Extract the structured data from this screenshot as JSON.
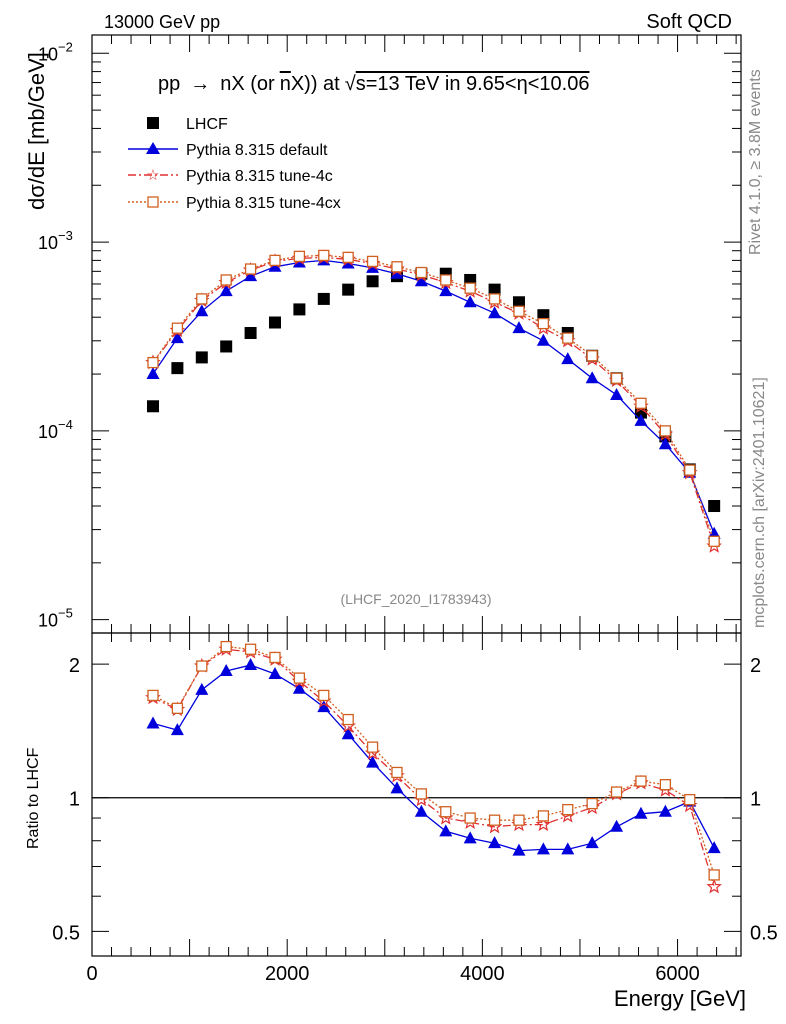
{
  "header": {
    "left": "13000 GeV pp",
    "right": "Soft QCD"
  },
  "side": {
    "rivet": "Rivet 4.1.0, ≥ 3.8M events",
    "mcplots": "mcplots.cern.ch [arXiv:2401.10621]"
  },
  "watermark": "(LHCF_2020_I1783943)",
  "colors": {
    "lhcf": "#000000",
    "default": "#0000dd",
    "tune4c": "#e03030",
    "tune4cx": "#d06020",
    "axis": "#000000"
  },
  "chart_data": [
    {
      "type": "scatter",
      "title": "pp  →  nX (or n̅X)) at √s=13 TeV in 9.65<η<10.06",
      "title_parts": {
        "a": "pp",
        "arrow": "→",
        "b": "nX (or",
        "nbar": "n",
        "c": "X)) at",
        "sqrt": "√",
        "d": "s=13 TeV in 9.65<η<10.06"
      },
      "ylabel": "dσ/dE [mb/GeV]",
      "yscale": "log",
      "ylim": [
        8.5e-06,
        0.0125
      ],
      "xlim": [
        0,
        6650
      ],
      "yticks": [
        {
          "value": 0.01,
          "label": "10",
          "exp": "−2"
        },
        {
          "value": 0.001,
          "label": "10",
          "exp": "−3"
        },
        {
          "value": 0.0001,
          "label": "10",
          "exp": "−4"
        },
        {
          "value": 1e-05,
          "label": "10",
          "exp": "−5"
        }
      ],
      "x": [
        625,
        875,
        1125,
        1375,
        1625,
        1875,
        2125,
        2375,
        2625,
        2875,
        3125,
        3375,
        3625,
        3875,
        4125,
        4375,
        4625,
        4875,
        5125,
        5375,
        5625,
        5875,
        6125,
        6375
      ],
      "legend": [
        "LHCF",
        "Pythia 8.315 default",
        "Pythia 8.315 tune-4c",
        "Pythia 8.315 tune-4cx"
      ],
      "series": [
        {
          "name": "LHCF",
          "marker": "square",
          "values": [
            0.000135,
            0.000215,
            0.000245,
            0.00028,
            0.00033,
            0.000375,
            0.00044,
            0.0005,
            0.00056,
            0.00062,
            0.00066,
            0.00068,
            0.00068,
            0.00063,
            0.00056,
            0.00048,
            0.00041,
            0.00033,
            0.00025,
            0.00019,
            0.000125,
            9.35e-05,
            6.25e-05,
            4e-05
          ]
        },
        {
          "name": "Pythia 8.315 default",
          "marker": "triangle",
          "values": [
            0.0002,
            0.00031,
            0.00043,
            0.00055,
            0.00066,
            0.00074,
            0.00078,
            0.0008,
            0.00077,
            0.00073,
            0.00068,
            0.00062,
            0.00055,
            0.00048,
            0.00042,
            0.00035,
            0.0003,
            0.00024,
            0.00019,
            0.000155,
            0.000113,
            8.5e-05,
            6e-05,
            2.85e-05
          ]
        },
        {
          "name": "Pythia 8.315 tune-4c",
          "marker": "star",
          "values": [
            0.00023,
            0.00034,
            0.00049,
            0.00061,
            0.00071,
            0.00079,
            0.00082,
            0.00083,
            0.00081,
            0.00077,
            0.00072,
            0.00067,
            0.00061,
            0.00055,
            0.00048,
            0.00042,
            0.00035,
            0.0003,
            0.00024,
            0.000185,
            0.000135,
            9.6e-05,
            6e-05,
            2.45e-05
          ]
        },
        {
          "name": "Pythia 8.315 tune-4cx",
          "marker": "open-square",
          "values": [
            0.00023,
            0.00035,
            0.0005,
            0.00063,
            0.00072,
            0.0008,
            0.00084,
            0.00085,
            0.00083,
            0.00079,
            0.00074,
            0.00069,
            0.00063,
            0.00057,
            0.0005,
            0.00043,
            0.00037,
            0.00031,
            0.00025,
            0.00019,
            0.00014,
            0.0001,
            6.2e-05,
            2.6e-05
          ]
        }
      ]
    },
    {
      "type": "line",
      "ylabel": "Ratio to LHCF",
      "xlabel": "Energy [GeV]",
      "yscale": "log",
      "ylim": [
        0.44,
        2.35
      ],
      "xlim": [
        0,
        6650
      ],
      "reference": 1,
      "yticks": [
        {
          "value": 0.5,
          "label": "0.5"
        },
        {
          "value": 1,
          "label": "1"
        },
        {
          "value": 2,
          "label": "2"
        }
      ],
      "xticks": [
        {
          "value": 0,
          "label": "0"
        },
        {
          "value": 2000,
          "label": "2000"
        },
        {
          "value": 4000,
          "label": "4000"
        },
        {
          "value": 6000,
          "label": "6000"
        }
      ],
      "x": [
        625,
        875,
        1125,
        1375,
        1625,
        1875,
        2125,
        2375,
        2625,
        2875,
        3125,
        3375,
        3625,
        3875,
        4125,
        4375,
        4625,
        4875,
        5125,
        5375,
        5625,
        5875,
        6125,
        6375
      ],
      "series": [
        {
          "name": "Pythia 8.315 default",
          "marker": "triangle",
          "values": [
            1.47,
            1.42,
            1.75,
            1.93,
            1.99,
            1.9,
            1.76,
            1.6,
            1.39,
            1.2,
            1.05,
            0.93,
            0.84,
            0.81,
            0.79,
            0.76,
            0.765,
            0.765,
            0.79,
            0.86,
            0.92,
            0.93,
            0.98,
            0.77
          ]
        },
        {
          "name": "Pythia 8.315 tune-4c",
          "marker": "star",
          "values": [
            1.68,
            1.58,
            1.98,
            2.16,
            2.13,
            2.05,
            1.83,
            1.65,
            1.45,
            1.26,
            1.12,
            0.99,
            0.9,
            0.88,
            0.86,
            0.87,
            0.87,
            0.91,
            0.95,
            1.02,
            1.08,
            1.04,
            0.96,
            0.63
          ]
        },
        {
          "name": "Pythia 8.315 tune-4cx",
          "marker": "open-square",
          "values": [
            1.7,
            1.59,
            1.98,
            2.19,
            2.16,
            2.07,
            1.86,
            1.7,
            1.5,
            1.3,
            1.14,
            1.02,
            0.93,
            0.9,
            0.89,
            0.89,
            0.91,
            0.94,
            0.97,
            1.03,
            1.09,
            1.07,
            0.99,
            0.67
          ]
        }
      ]
    }
  ]
}
